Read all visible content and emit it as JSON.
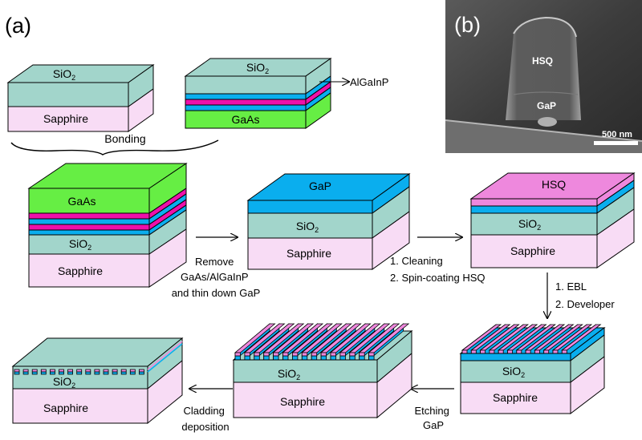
{
  "panels": {
    "a": "(a)",
    "b": "(b)"
  },
  "layers": {
    "sapphire": "Sapphire",
    "sio2": "SiO",
    "sio2_sub": "2",
    "gaas": "GaAs",
    "gap": "GaP",
    "hsq": "HSQ",
    "algainp": "AlGaInP"
  },
  "sem": {
    "hsq": "HSQ",
    "gap": "GaP",
    "scale": "500 nm"
  },
  "steps": {
    "bonding": "Bonding",
    "remove_1": "Remove",
    "remove_2": "GaAs/AlGaInP",
    "remove_3": "and thin down GaP",
    "clean_1": "1. Cleaning",
    "clean_2": "2. Spin-coating HSQ",
    "ebl_1": "1. EBL",
    "ebl_2": "2. Developer",
    "etch_1": "Etching",
    "etch_2": "GaP",
    "clad_1": "Cladding",
    "clad_2": "deposition"
  },
  "colors": {
    "sapphire": "#f8dcf5",
    "sio2": "#a2d5cb",
    "gaas": "#66ee44",
    "gap": "#0aaeee",
    "algainp": "#ee11aa",
    "hsq": "#ee88dd"
  }
}
